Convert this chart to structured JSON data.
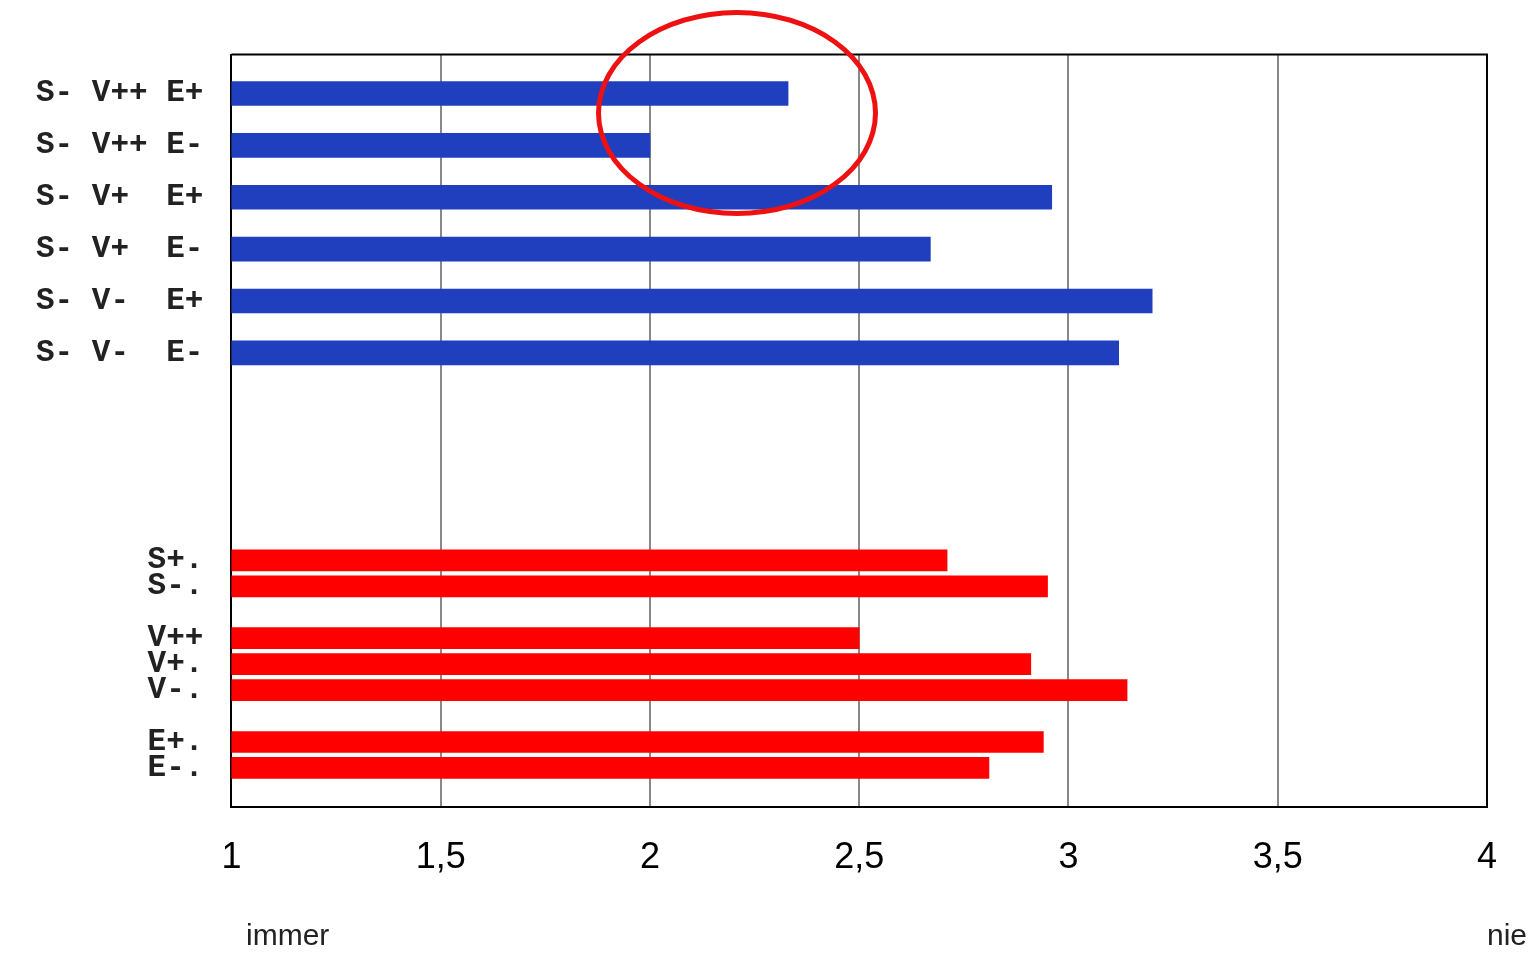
{
  "chart_data": {
    "type": "bar",
    "orientation": "horizontal",
    "categories": [
      null,
      "S- V++ E+",
      null,
      "S- V++ E-",
      null,
      "S- V+  E+",
      null,
      "S- V+  E-",
      null,
      "S- V-  E+",
      null,
      "S- V-  E-",
      null,
      null,
      null,
      null,
      null,
      null,
      null,
      "S+.",
      "S-.",
      null,
      "V++",
      "V+.",
      "V-.",
      null,
      "E+.",
      "E-.",
      null
    ],
    "series": [
      {
        "color": "#1f3fbf",
        "values": [
          null,
          2.33,
          null,
          2.0,
          null,
          2.96,
          null,
          2.67,
          null,
          3.2,
          null,
          3.12,
          null,
          null,
          null,
          null,
          null,
          null,
          null,
          null,
          null,
          null,
          null,
          null,
          null,
          null,
          null,
          null,
          null
        ]
      },
      {
        "color": "#ff0000",
        "values": [
          null,
          null,
          null,
          null,
          null,
          null,
          null,
          null,
          null,
          null,
          null,
          null,
          null,
          null,
          null,
          null,
          null,
          null,
          null,
          2.71,
          2.95,
          null,
          2.5,
          2.91,
          3.14,
          null,
          2.94,
          2.81,
          null
        ]
      }
    ],
    "xlim": [
      1,
      4
    ],
    "xticks": [
      1,
      {
        "value": 1.5,
        "label": "1,5"
      },
      2,
      {
        "value": 2.5,
        "label": "2,5"
      },
      3,
      {
        "value": 3.5,
        "label": "3,5"
      },
      4
    ],
    "grid": "x",
    "legend": false,
    "annotations": [
      "immer",
      "nie"
    ]
  }
}
